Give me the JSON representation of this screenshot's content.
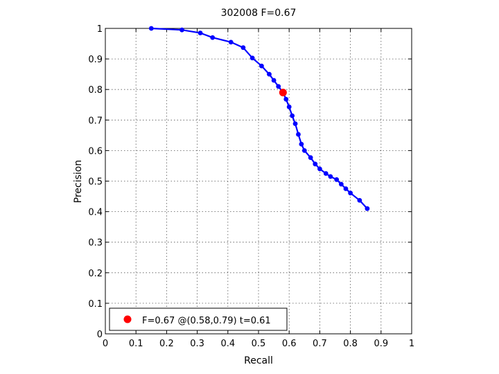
{
  "chart_data": {
    "type": "line",
    "title": "302008 F=0.67",
    "xlabel": "Recall",
    "ylabel": "Precision",
    "xlim": [
      0,
      1
    ],
    "ylim": [
      0,
      1
    ],
    "x_ticks": [
      0,
      0.1,
      0.2,
      0.3,
      0.4,
      0.5,
      0.6,
      0.7,
      0.8,
      0.9,
      1
    ],
    "y_ticks": [
      0,
      0.1,
      0.2,
      0.3,
      0.4,
      0.5,
      0.6,
      0.7,
      0.8,
      0.9,
      1
    ],
    "x_tick_labels": [
      "0",
      "0.1",
      "0.2",
      "0.3",
      "0.4",
      "0.5",
      "0.6",
      "0.7",
      "0.8",
      "0.9",
      "1"
    ],
    "y_tick_labels": [
      "0",
      "0.1",
      "0.2",
      "0.3",
      "0.4",
      "0.5",
      "0.6",
      "0.7",
      "0.8",
      "0.9",
      "1"
    ],
    "grid": true,
    "legend_position": "bottom-left",
    "series": [
      {
        "color": "#0000ff",
        "marker": "dot",
        "points": [
          [
            0.15,
            1.0
          ],
          [
            0.25,
            0.995
          ],
          [
            0.31,
            0.985
          ],
          [
            0.35,
            0.97
          ],
          [
            0.41,
            0.955
          ],
          [
            0.45,
            0.937
          ],
          [
            0.48,
            0.903
          ],
          [
            0.51,
            0.877
          ],
          [
            0.535,
            0.85
          ],
          [
            0.55,
            0.83
          ],
          [
            0.565,
            0.81
          ],
          [
            0.58,
            0.79
          ],
          [
            0.59,
            0.768
          ],
          [
            0.6,
            0.743
          ],
          [
            0.61,
            0.714
          ],
          [
            0.62,
            0.688
          ],
          [
            0.63,
            0.653
          ],
          [
            0.64,
            0.621
          ],
          [
            0.65,
            0.6
          ],
          [
            0.67,
            0.577
          ],
          [
            0.685,
            0.556
          ],
          [
            0.7,
            0.54
          ],
          [
            0.72,
            0.525
          ],
          [
            0.735,
            0.515
          ],
          [
            0.755,
            0.505
          ],
          [
            0.77,
            0.49
          ],
          [
            0.785,
            0.475
          ],
          [
            0.8,
            0.461
          ],
          [
            0.83,
            0.437
          ],
          [
            0.855,
            0.41
          ]
        ]
      }
    ],
    "highlight": {
      "label": "F=0.67 @(0.58,0.79) t=0.61",
      "x": 0.58,
      "y": 0.79,
      "color": "#ff0000"
    }
  }
}
